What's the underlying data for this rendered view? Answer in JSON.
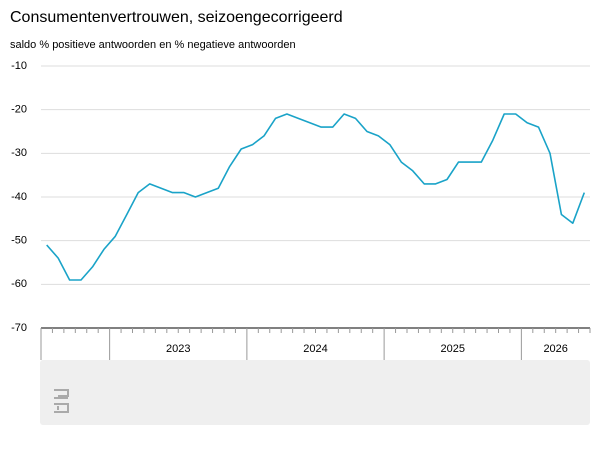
{
  "chart_data": {
    "type": "line",
    "title": "Consumentenvertrouwen, seizoengecorrigeerd",
    "subtitle": "saldo % positieve antwoorden en % negatieve antwoorden",
    "categories": [
      null,
      null,
      null,
      null,
      null,
      null,
      "2023",
      null,
      null,
      null,
      null,
      null,
      null,
      null,
      null,
      null,
      null,
      null,
      "2024",
      null,
      null,
      null,
      null,
      null,
      null,
      null,
      null,
      null,
      null,
      null,
      "2025",
      null,
      null,
      null,
      null,
      null,
      null,
      null,
      null,
      null,
      null,
      null,
      "2026",
      null,
      null,
      null,
      null,
      null
    ],
    "values": [
      -51,
      -54,
      -59,
      -59,
      -56,
      -52,
      -49,
      -44,
      -39,
      -37,
      -38,
      -39,
      -39,
      -40,
      -39,
      -38,
      -33,
      -29,
      -28,
      -26,
      -22,
      -21,
      -22,
      -23,
      -24,
      -24,
      -21,
      -22,
      -25,
      -26,
      -28,
      -32,
      -34,
      -37,
      -37,
      -36,
      -32,
      -32,
      -32,
      -27,
      -21,
      -21,
      -23,
      -24,
      -30,
      -44,
      -46,
      -39
    ],
    "color": "#1aa3c8",
    "ylim": [
      -70,
      -10
    ],
    "yticks": [
      -70,
      -60,
      -50,
      -40,
      -30,
      -20,
      -10
    ],
    "grid": true
  }
}
